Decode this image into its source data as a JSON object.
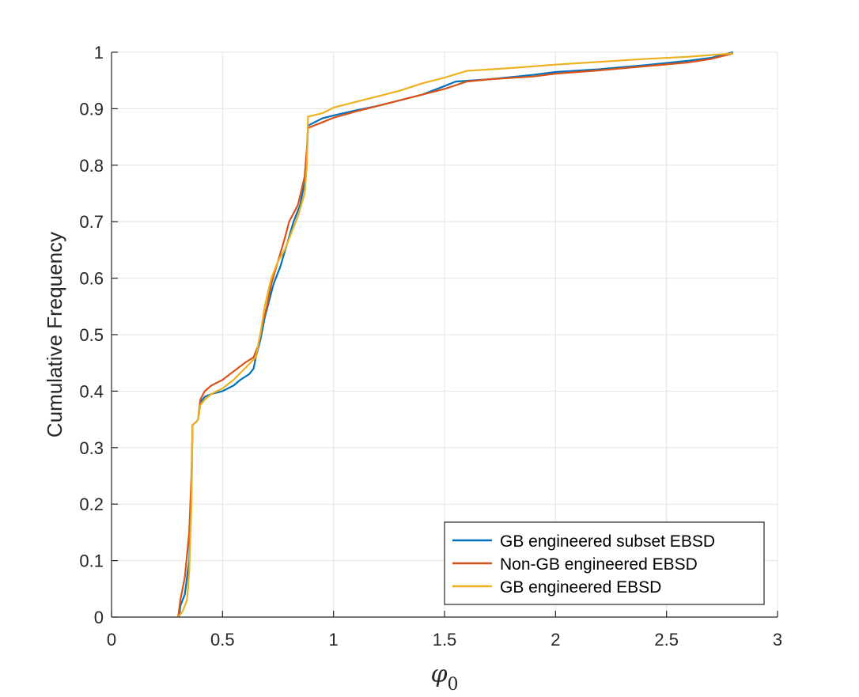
{
  "chart_data": {
    "type": "line",
    "title": "",
    "xlabel": {
      "symbol": "φ",
      "subscript": "0"
    },
    "ylabel": "Cumulative Frequency",
    "xlim": [
      0,
      3
    ],
    "ylim": [
      0,
      1
    ],
    "x_ticks": [
      0,
      0.5,
      1,
      1.5,
      2,
      2.5,
      3
    ],
    "x_tick_labels": [
      "0",
      "0.5",
      "1",
      "1.5",
      "2",
      "2.5",
      "3"
    ],
    "y_ticks": [
      0,
      0.1,
      0.2,
      0.3,
      0.4,
      0.5,
      0.6,
      0.7,
      0.8,
      0.9,
      1
    ],
    "y_tick_labels": [
      "0",
      "0.1",
      "0.2",
      "0.3",
      "0.4",
      "0.5",
      "0.6",
      "0.7",
      "0.8",
      "0.9",
      "1"
    ],
    "grid": true,
    "legend_position": "bottom-right",
    "series": [
      {
        "name": "GB engineered subset EBSD",
        "color": "#0072BD",
        "points": [
          [
            0.305,
            0.0
          ],
          [
            0.31,
            0.02
          ],
          [
            0.33,
            0.04
          ],
          [
            0.35,
            0.1
          ],
          [
            0.36,
            0.22
          ],
          [
            0.365,
            0.34
          ],
          [
            0.38,
            0.345
          ],
          [
            0.39,
            0.35
          ],
          [
            0.4,
            0.38
          ],
          [
            0.42,
            0.39
          ],
          [
            0.45,
            0.395
          ],
          [
            0.5,
            0.4
          ],
          [
            0.55,
            0.41
          ],
          [
            0.58,
            0.42
          ],
          [
            0.6,
            0.425
          ],
          [
            0.62,
            0.43
          ],
          [
            0.64,
            0.44
          ],
          [
            0.65,
            0.46
          ],
          [
            0.67,
            0.49
          ],
          [
            0.69,
            0.53
          ],
          [
            0.71,
            0.56
          ],
          [
            0.73,
            0.59
          ],
          [
            0.76,
            0.62
          ],
          [
            0.79,
            0.66
          ],
          [
            0.82,
            0.7
          ],
          [
            0.85,
            0.73
          ],
          [
            0.87,
            0.77
          ],
          [
            0.88,
            0.82
          ],
          [
            0.885,
            0.87
          ],
          [
            0.95,
            0.883
          ],
          [
            1.0,
            0.888
          ],
          [
            1.1,
            0.897
          ],
          [
            1.2,
            0.905
          ],
          [
            1.3,
            0.915
          ],
          [
            1.4,
            0.925
          ],
          [
            1.5,
            0.94
          ],
          [
            1.55,
            0.948
          ],
          [
            1.7,
            0.952
          ],
          [
            1.9,
            0.96
          ],
          [
            2.0,
            0.965
          ],
          [
            2.2,
            0.97
          ],
          [
            2.4,
            0.977
          ],
          [
            2.6,
            0.985
          ],
          [
            2.7,
            0.99
          ],
          [
            2.8,
            1.0
          ]
        ]
      },
      {
        "name": "Non-GB engineered EBSD",
        "color": "#D95319",
        "points": [
          [
            0.3,
            0.0
          ],
          [
            0.31,
            0.03
          ],
          [
            0.33,
            0.07
          ],
          [
            0.35,
            0.15
          ],
          [
            0.36,
            0.25
          ],
          [
            0.365,
            0.34
          ],
          [
            0.38,
            0.345
          ],
          [
            0.39,
            0.35
          ],
          [
            0.4,
            0.385
          ],
          [
            0.42,
            0.4
          ],
          [
            0.45,
            0.41
          ],
          [
            0.5,
            0.42
          ],
          [
            0.55,
            0.435
          ],
          [
            0.6,
            0.45
          ],
          [
            0.64,
            0.46
          ],
          [
            0.66,
            0.48
          ],
          [
            0.68,
            0.52
          ],
          [
            0.7,
            0.55
          ],
          [
            0.72,
            0.59
          ],
          [
            0.75,
            0.63
          ],
          [
            0.78,
            0.67
          ],
          [
            0.8,
            0.7
          ],
          [
            0.84,
            0.73
          ],
          [
            0.87,
            0.78
          ],
          [
            0.88,
            0.83
          ],
          [
            0.885,
            0.866
          ],
          [
            0.95,
            0.876
          ],
          [
            1.0,
            0.884
          ],
          [
            1.1,
            0.895
          ],
          [
            1.2,
            0.905
          ],
          [
            1.3,
            0.915
          ],
          [
            1.4,
            0.925
          ],
          [
            1.5,
            0.935
          ],
          [
            1.6,
            0.948
          ],
          [
            1.7,
            0.952
          ],
          [
            1.9,
            0.957
          ],
          [
            2.0,
            0.962
          ],
          [
            2.2,
            0.968
          ],
          [
            2.4,
            0.975
          ],
          [
            2.6,
            0.982
          ],
          [
            2.7,
            0.988
          ],
          [
            2.8,
            0.998
          ]
        ]
      },
      {
        "name": "GB engineered EBSD",
        "color": "#EDB120",
        "points": [
          [
            0.3,
            0.0
          ],
          [
            0.32,
            0.01
          ],
          [
            0.34,
            0.03
          ],
          [
            0.35,
            0.08
          ],
          [
            0.36,
            0.2
          ],
          [
            0.365,
            0.34
          ],
          [
            0.38,
            0.345
          ],
          [
            0.39,
            0.35
          ],
          [
            0.4,
            0.375
          ],
          [
            0.42,
            0.385
          ],
          [
            0.45,
            0.395
          ],
          [
            0.5,
            0.405
          ],
          [
            0.55,
            0.42
          ],
          [
            0.6,
            0.44
          ],
          [
            0.65,
            0.46
          ],
          [
            0.67,
            0.5
          ],
          [
            0.69,
            0.55
          ],
          [
            0.72,
            0.6
          ],
          [
            0.75,
            0.63
          ],
          [
            0.78,
            0.65
          ],
          [
            0.81,
            0.68
          ],
          [
            0.84,
            0.71
          ],
          [
            0.87,
            0.75
          ],
          [
            0.88,
            0.8
          ],
          [
            0.885,
            0.886
          ],
          [
            0.95,
            0.892
          ],
          [
            1.0,
            0.902
          ],
          [
            1.1,
            0.912
          ],
          [
            1.2,
            0.922
          ],
          [
            1.3,
            0.932
          ],
          [
            1.4,
            0.945
          ],
          [
            1.5,
            0.955
          ],
          [
            1.6,
            0.967
          ],
          [
            1.8,
            0.972
          ],
          [
            2.0,
            0.978
          ],
          [
            2.2,
            0.983
          ],
          [
            2.4,
            0.988
          ],
          [
            2.6,
            0.992
          ],
          [
            2.8,
            0.998
          ]
        ]
      }
    ]
  }
}
